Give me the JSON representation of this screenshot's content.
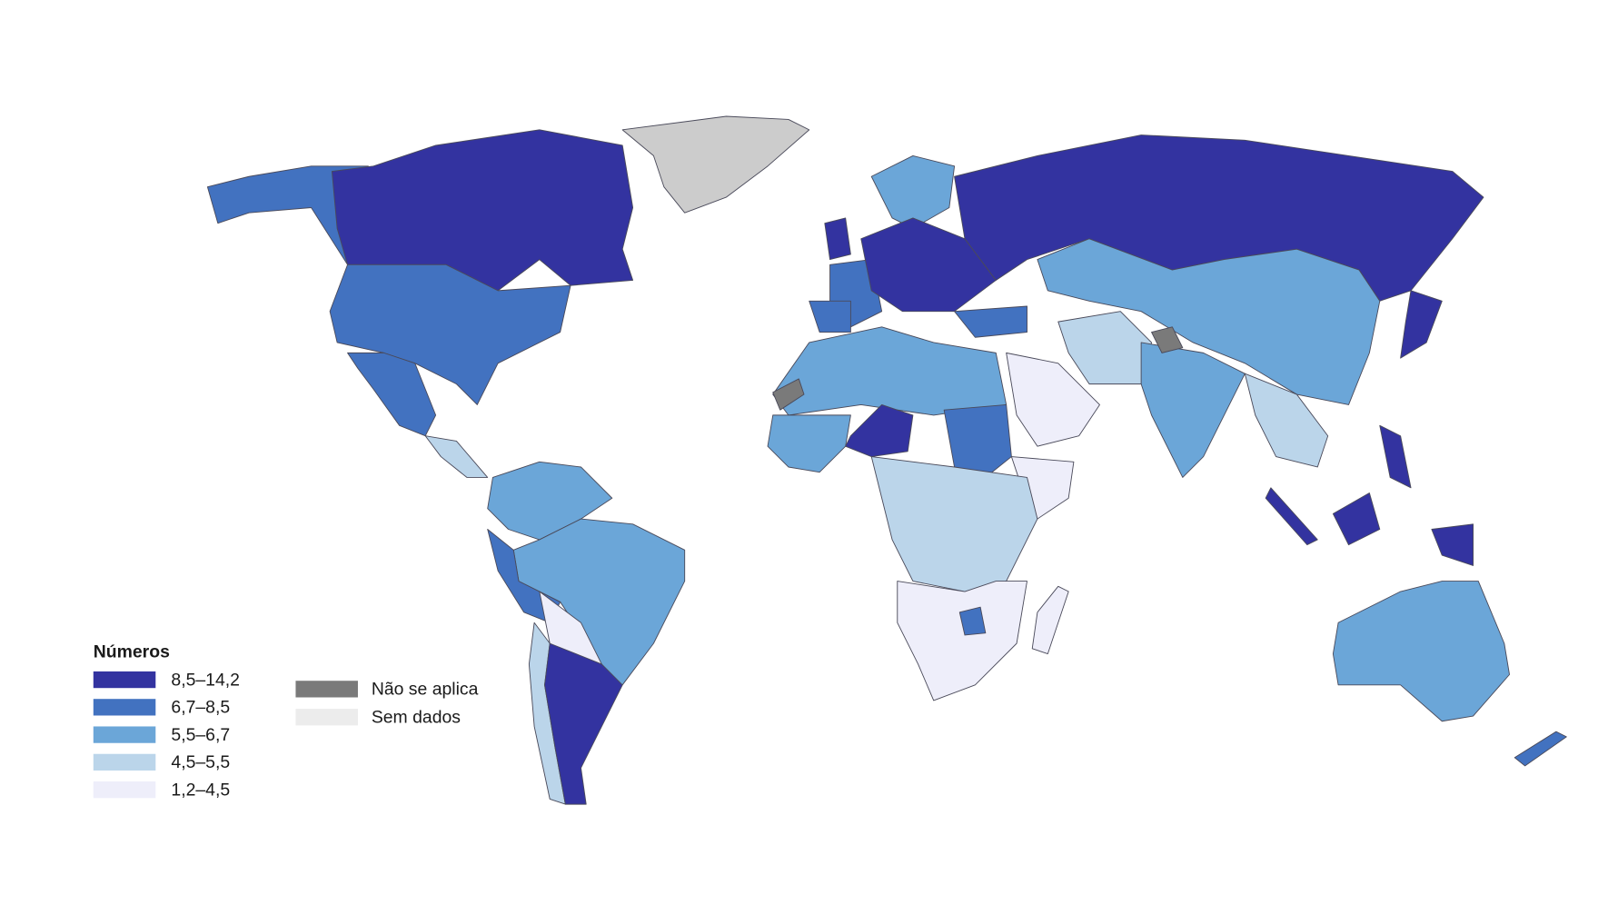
{
  "legend": {
    "title": "Números",
    "items": [
      {
        "label": "8,5–14,2",
        "color": "#3333a0"
      },
      {
        "label": "6,7–8,5",
        "color": "#4272c0"
      },
      {
        "label": "5,5–6,7",
        "color": "#6ba6d8"
      },
      {
        "label": "4,5–5,5",
        "color": "#bbd5ea"
      },
      {
        "label": "1,2–4,5",
        "color": "#eeeefa"
      }
    ],
    "other": [
      {
        "label": "Não se aplica",
        "color": "#7a7a7a"
      },
      {
        "label": "Sem dados",
        "color": "#ececec"
      }
    ]
  }
}
